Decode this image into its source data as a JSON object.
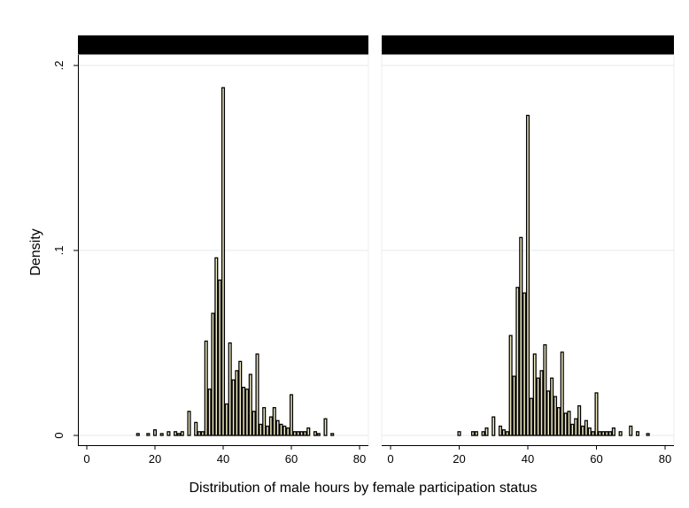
{
  "chart_data": [
    {
      "type": "bar",
      "panel": "left",
      "title": "",
      "xlabel": "",
      "ylabel": "Density",
      "xlim": [
        -2,
        82
      ],
      "ylim": [
        0,
        0.2
      ],
      "xticks": [
        0,
        20,
        40,
        60,
        80
      ],
      "yticks": [
        0,
        0.1,
        0.2
      ],
      "ytick_labels": [
        "0",
        ".1",
        ".2"
      ],
      "grid": true,
      "bars": [
        {
          "x": 15,
          "value": 0.001
        },
        {
          "x": 18,
          "value": 0.001
        },
        {
          "x": 20,
          "value": 0.003
        },
        {
          "x": 22,
          "value": 0.001
        },
        {
          "x": 24,
          "value": 0.002
        },
        {
          "x": 26,
          "value": 0.002
        },
        {
          "x": 27,
          "value": 0.001
        },
        {
          "x": 28,
          "value": 0.002
        },
        {
          "x": 30,
          "value": 0.013
        },
        {
          "x": 32,
          "value": 0.007
        },
        {
          "x": 33,
          "value": 0.002
        },
        {
          "x": 34,
          "value": 0.002
        },
        {
          "x": 35,
          "value": 0.051
        },
        {
          "x": 36,
          "value": 0.025
        },
        {
          "x": 37,
          "value": 0.066
        },
        {
          "x": 38,
          "value": 0.096
        },
        {
          "x": 39,
          "value": 0.084
        },
        {
          "x": 40,
          "value": 0.188
        },
        {
          "x": 41,
          "value": 0.017
        },
        {
          "x": 42,
          "value": 0.05
        },
        {
          "x": 43,
          "value": 0.03
        },
        {
          "x": 44,
          "value": 0.035
        },
        {
          "x": 45,
          "value": 0.04
        },
        {
          "x": 46,
          "value": 0.026
        },
        {
          "x": 47,
          "value": 0.025
        },
        {
          "x": 48,
          "value": 0.033
        },
        {
          "x": 49,
          "value": 0.013
        },
        {
          "x": 50,
          "value": 0.044
        },
        {
          "x": 51,
          "value": 0.006
        },
        {
          "x": 52,
          "value": 0.015
        },
        {
          "x": 53,
          "value": 0.005
        },
        {
          "x": 54,
          "value": 0.01
        },
        {
          "x": 55,
          "value": 0.015
        },
        {
          "x": 56,
          "value": 0.008
        },
        {
          "x": 57,
          "value": 0.006
        },
        {
          "x": 58,
          "value": 0.005
        },
        {
          "x": 59,
          "value": 0.004
        },
        {
          "x": 60,
          "value": 0.022
        },
        {
          "x": 61,
          "value": 0.002
        },
        {
          "x": 62,
          "value": 0.002
        },
        {
          "x": 63,
          "value": 0.002
        },
        {
          "x": 64,
          "value": 0.002
        },
        {
          "x": 65,
          "value": 0.004
        },
        {
          "x": 67,
          "value": 0.002
        },
        {
          "x": 68,
          "value": 0.001
        },
        {
          "x": 70,
          "value": 0.009
        },
        {
          "x": 72,
          "value": 0.001
        }
      ]
    },
    {
      "type": "bar",
      "panel": "right",
      "title": "",
      "xlabel": "",
      "ylabel": "",
      "xlim": [
        -2,
        82
      ],
      "ylim": [
        0,
        0.2
      ],
      "xticks": [
        0,
        20,
        40,
        60,
        80
      ],
      "yticks": [
        0,
        0.1,
        0.2
      ],
      "grid": true,
      "bars": [
        {
          "x": 20,
          "value": 0.002
        },
        {
          "x": 24,
          "value": 0.002
        },
        {
          "x": 25,
          "value": 0.002
        },
        {
          "x": 27,
          "value": 0.002
        },
        {
          "x": 28,
          "value": 0.004
        },
        {
          "x": 30,
          "value": 0.01
        },
        {
          "x": 32,
          "value": 0.005
        },
        {
          "x": 33,
          "value": 0.003
        },
        {
          "x": 34,
          "value": 0.002
        },
        {
          "x": 35,
          "value": 0.054
        },
        {
          "x": 36,
          "value": 0.032
        },
        {
          "x": 37,
          "value": 0.08
        },
        {
          "x": 38,
          "value": 0.107
        },
        {
          "x": 39,
          "value": 0.077
        },
        {
          "x": 40,
          "value": 0.173
        },
        {
          "x": 41,
          "value": 0.02
        },
        {
          "x": 42,
          "value": 0.044
        },
        {
          "x": 43,
          "value": 0.031
        },
        {
          "x": 44,
          "value": 0.035
        },
        {
          "x": 45,
          "value": 0.049
        },
        {
          "x": 46,
          "value": 0.024
        },
        {
          "x": 47,
          "value": 0.031
        },
        {
          "x": 48,
          "value": 0.021
        },
        {
          "x": 49,
          "value": 0.015
        },
        {
          "x": 50,
          "value": 0.045
        },
        {
          "x": 51,
          "value": 0.012
        },
        {
          "x": 52,
          "value": 0.013
        },
        {
          "x": 53,
          "value": 0.006
        },
        {
          "x": 54,
          "value": 0.009
        },
        {
          "x": 55,
          "value": 0.016
        },
        {
          "x": 56,
          "value": 0.005
        },
        {
          "x": 57,
          "value": 0.008
        },
        {
          "x": 58,
          "value": 0.004
        },
        {
          "x": 59,
          "value": 0.002
        },
        {
          "x": 60,
          "value": 0.023
        },
        {
          "x": 61,
          "value": 0.002
        },
        {
          "x": 62,
          "value": 0.002
        },
        {
          "x": 63,
          "value": 0.002
        },
        {
          "x": 64,
          "value": 0.002
        },
        {
          "x": 65,
          "value": 0.004
        },
        {
          "x": 67,
          "value": 0.002
        },
        {
          "x": 70,
          "value": 0.005
        },
        {
          "x": 72,
          "value": 0.002
        },
        {
          "x": 75,
          "value": 0.001
        }
      ]
    }
  ],
  "figure": {
    "xlabel": "Distribution of male hours by female participation status",
    "ylabel": "Density",
    "colors": {
      "bar_fill": "#f3eec4",
      "bar_outline": "#000000",
      "strip": "#000000",
      "grid": "#e3ebe9",
      "axis": "#000000"
    }
  }
}
